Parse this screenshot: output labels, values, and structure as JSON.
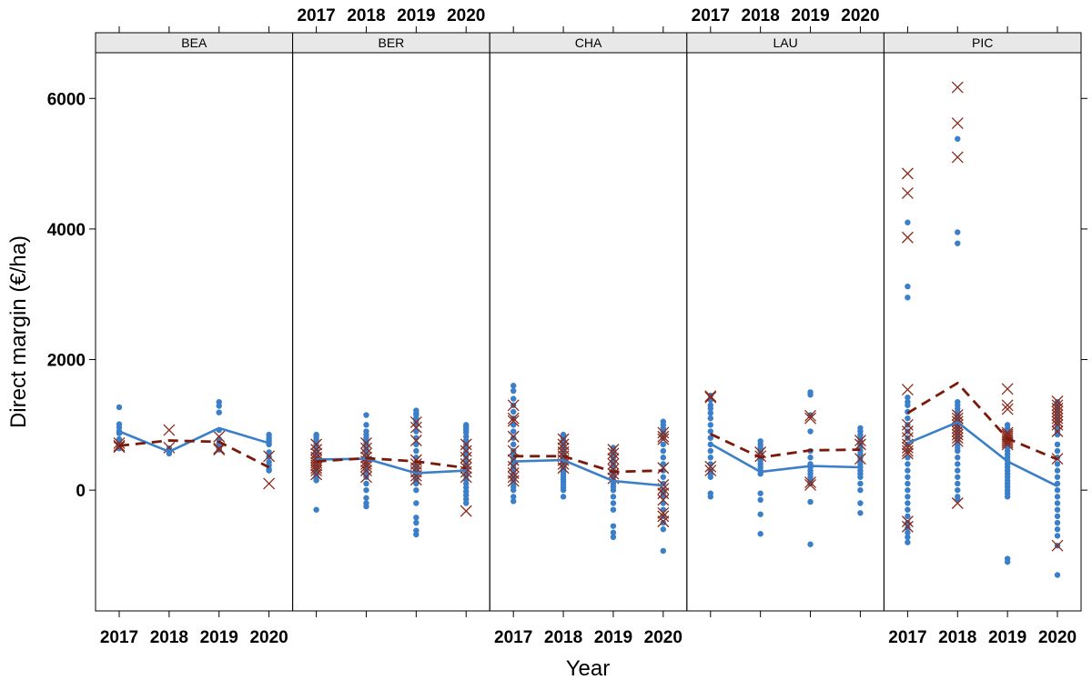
{
  "chart_data": {
    "type": "scatter",
    "xlabel": "Year",
    "ylabel": "Direct margin (€/ha)",
    "ylim": [
      -1850,
      6700
    ],
    "yticks": [
      0,
      2000,
      4000,
      6000
    ],
    "ytick_labels": [
      "0",
      "2000",
      "4000",
      "6000"
    ],
    "x_categories": [
      "2017",
      "2018",
      "2019",
      "2020"
    ],
    "panels": [
      {
        "name": "BEA",
        "points": {
          "2017": [
            1270,
            1010,
            960,
            900,
            870,
            780,
            720,
            690,
            660,
            640
          ],
          "2018": [
            640,
            620,
            590,
            580,
            560
          ],
          "2019": [
            1350,
            1290,
            1190,
            920,
            780,
            720,
            680,
            660,
            630,
            620
          ],
          "2020": [
            850,
            800,
            760,
            720,
            700,
            580,
            510,
            430,
            380,
            320,
            300
          ]
        },
        "crosses": {
          "2017": [
            720,
            680,
            660
          ],
          "2018": [
            920,
            650
          ],
          "2019": [
            820,
            640,
            620
          ],
          "2020": [
            520,
            100
          ]
        },
        "mean_line": [
          900,
          590,
          950,
          720
        ],
        "dashed_line": [
          680,
          760,
          740,
          350
        ]
      },
      {
        "name": "BER",
        "points": {
          "2017": [
            850,
            820,
            780,
            740,
            700,
            660,
            620,
            590,
            560,
            530,
            500,
            470,
            440,
            410,
            380,
            350,
            320,
            290,
            260,
            230,
            200,
            170,
            150,
            -300
          ],
          "2018": [
            1150,
            1000,
            900,
            850,
            800,
            760,
            720,
            680,
            640,
            600,
            560,
            520,
            480,
            440,
            400,
            360,
            320,
            280,
            240,
            200,
            100,
            0,
            -120,
            -200,
            -250
          ],
          "2019": [
            1220,
            1180,
            1150,
            1100,
            1050,
            1000,
            900,
            800,
            700,
            600,
            500,
            400,
            350,
            300,
            250,
            200,
            150,
            100,
            0,
            -200,
            -420,
            -500,
            -620,
            -680
          ],
          "2020": [
            1000,
            980,
            950,
            920,
            880,
            820,
            760,
            700,
            640,
            580,
            520,
            460,
            400,
            340,
            280,
            220,
            160,
            100,
            40,
            -20,
            -80,
            -140,
            -200
          ]
        },
        "crosses": {
          "2017": [
            700,
            620,
            560,
            500,
            460,
            420,
            380,
            340,
            300,
            240
          ],
          "2018": [
            720,
            640,
            560,
            500,
            440,
            400,
            360,
            300,
            200
          ],
          "2019": [
            1040,
            960,
            760,
            460,
            400,
            340,
            280,
            220,
            160
          ],
          "2020": [
            700,
            600,
            500,
            400,
            340,
            280,
            200,
            -320
          ]
        },
        "mean_line": [
          470,
          480,
          260,
          300
        ],
        "dashed_line": [
          440,
          490,
          440,
          340
        ]
      },
      {
        "name": "CHA",
        "points": {
          "2017": [
            1600,
            1520,
            1400,
            1300,
            1200,
            1100,
            1000,
            900,
            800,
            700,
            600,
            550,
            500,
            450,
            400,
            350,
            300,
            250,
            200,
            150,
            100,
            50,
            0,
            -100,
            -170
          ],
          "2018": [
            850,
            800,
            760,
            720,
            680,
            640,
            600,
            560,
            520,
            480,
            440,
            400,
            360,
            320,
            280,
            240,
            200,
            160,
            120,
            80,
            40,
            0,
            -100
          ],
          "2019": [
            650,
            600,
            550,
            500,
            450,
            400,
            350,
            300,
            250,
            200,
            150,
            100,
            50,
            0,
            -100,
            -200,
            -300,
            -550,
            -650,
            -720
          ],
          "2020": [
            1050,
            1000,
            950,
            900,
            850,
            800,
            700,
            600,
            500,
            400,
            300,
            200,
            100,
            0,
            -50,
            -100,
            -200,
            -300,
            -400,
            -500,
            -600,
            -930
          ]
        },
        "crosses": {
          "2017": [
            1300,
            1100,
            1060,
            820,
            600,
            460,
            360,
            260,
            200,
            140
          ],
          "2018": [
            780,
            700,
            640,
            580,
            520,
            460,
            400,
            340
          ],
          "2019": [
            620,
            560,
            480,
            400,
            320,
            250,
            180
          ],
          "2020": [
            880,
            820,
            780,
            340,
            80,
            20,
            -50,
            -150,
            -350,
            -400,
            -480
          ]
        },
        "mean_line": [
          440,
          460,
          140,
          70
        ],
        "dashed_line": [
          520,
          520,
          280,
          300
        ]
      },
      {
        "name": "LAU",
        "points": {
          "2017": [
            1450,
            1380,
            1300,
            1250,
            1180,
            1100,
            1000,
            900,
            800,
            700,
            600,
            500,
            400,
            300,
            250,
            200,
            -50,
            -100
          ],
          "2018": [
            750,
            700,
            650,
            600,
            550,
            500,
            450,
            400,
            350,
            300,
            250,
            -50,
            -150,
            -370,
            -670
          ],
          "2019": [
            1500,
            1460,
            1150,
            900,
            600,
            500,
            400,
            350,
            300,
            250,
            200,
            150,
            100,
            -180,
            -830
          ],
          "2020": [
            950,
            900,
            850,
            800,
            750,
            700,
            650,
            600,
            550,
            500,
            450,
            400,
            350,
            300,
            250,
            200,
            100,
            0,
            -200,
            -350
          ]
        },
        "crosses": {
          "2017": [
            1440,
            1420,
            360,
            300
          ],
          "2018": [
            580,
            520
          ],
          "2019": [
            1140,
            1100,
            120,
            80
          ],
          "2020": [
            760,
            700,
            480
          ]
        },
        "mean_line": [
          710,
          280,
          370,
          350
        ],
        "dashed_line": [
          860,
          500,
          610,
          620
        ]
      },
      {
        "name": "PIC",
        "points": {
          "2017": [
            4100,
            3120,
            2950,
            1420,
            1350,
            1300,
            1200,
            1100,
            1000,
            900,
            800,
            700,
            600,
            500,
            400,
            300,
            200,
            100,
            0,
            -100,
            -200,
            -300,
            -400,
            -500,
            -580,
            -650,
            -720,
            -800
          ],
          "2018": [
            5380,
            3950,
            3780,
            1350,
            1300,
            1250,
            1200,
            1150,
            1100,
            1050,
            1000,
            950,
            900,
            850,
            800,
            750,
            700,
            650,
            600,
            500,
            400,
            300,
            200,
            100,
            0,
            -100,
            -150
          ],
          "2019": [
            1000,
            950,
            900,
            850,
            800,
            750,
            700,
            650,
            600,
            550,
            500,
            450,
            400,
            350,
            300,
            250,
            200,
            150,
            100,
            50,
            0,
            -50,
            -100,
            -1050,
            -1100
          ],
          "2020": [
            1350,
            1300,
            1250,
            1200,
            1150,
            1100,
            1050,
            1000,
            950,
            900,
            850,
            700,
            600,
            500,
            400,
            300,
            200,
            100,
            0,
            -100,
            -200,
            -300,
            -400,
            -500,
            -600,
            -700,
            -850,
            -1300
          ]
        },
        "crosses": {
          "2017": [
            4850,
            4550,
            3870,
            1540,
            1000,
            900,
            800,
            700,
            650,
            600,
            560,
            -480,
            -560
          ],
          "2018": [
            6170,
            5620,
            5100,
            1150,
            1100,
            1050,
            1000,
            950,
            900,
            850,
            800,
            750,
            -200
          ],
          "2019": [
            1550,
            1300,
            1240,
            880,
            850,
            820,
            790,
            760,
            730,
            700
          ],
          "2020": [
            1360,
            1300,
            1250,
            1200,
            1150,
            1100,
            1050,
            1000,
            900,
            480,
            -850
          ]
        },
        "mean_line": [
          720,
          1040,
          440,
          60
        ],
        "dashed_line": [
          1180,
          1640,
          790,
          470
        ]
      }
    ],
    "colors": {
      "points": "#3a7fc8",
      "crosses": "#8b2a1a",
      "mean_line": "#3a7fc8",
      "dashed_line": "#7a1a0a",
      "strip": "#e8e8e8",
      "frame": "#000000"
    },
    "grid": false
  }
}
